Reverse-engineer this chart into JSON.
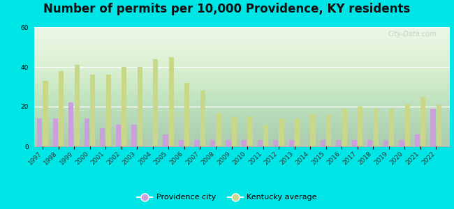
{
  "title": "Number of permits per 10,000 Providence, KY residents",
  "years": [
    1997,
    1998,
    1999,
    2000,
    2001,
    2002,
    2003,
    2004,
    2005,
    2006,
    2007,
    2008,
    2009,
    2010,
    2011,
    2012,
    2013,
    2014,
    2015,
    2016,
    2017,
    2018,
    2019,
    2020,
    2021,
    2022
  ],
  "providence": [
    14,
    14,
    22,
    14,
    9,
    11,
    11,
    0,
    6,
    3,
    3,
    3,
    3,
    3,
    3,
    3,
    3,
    0,
    3,
    3,
    3,
    3,
    3,
    3,
    6,
    19
  ],
  "kentucky": [
    33,
    38,
    41,
    36,
    36,
    40,
    40,
    44,
    45,
    32,
    28,
    17,
    15,
    15,
    11,
    14,
    14,
    16,
    16,
    19,
    20,
    19,
    19,
    21,
    25,
    21
  ],
  "providence_color": "#c9a0dc",
  "kentucky_color": "#c8d888",
  "bg_outer": "#00e5e5",
  "bg_plot_top": "#f5faf0",
  "bg_plot_bottom": "#dff0e8",
  "ylim": [
    0,
    60
  ],
  "yticks": [
    0,
    20,
    40,
    60
  ],
  "watermark": "City-Data.com",
  "legend_providence": "Providence city",
  "legend_kentucky": "Kentucky average",
  "title_fontsize": 12,
  "tick_fontsize": 6.5,
  "bar_width": 0.32,
  "bar_gap": 0.05
}
